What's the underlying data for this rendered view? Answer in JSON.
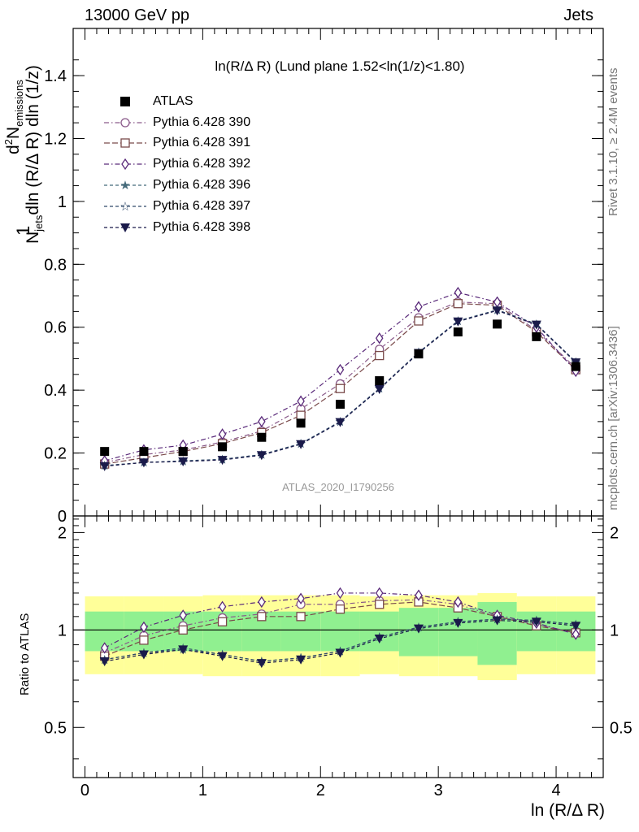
{
  "header": {
    "left": "13000 GeV pp",
    "right": "Jets"
  },
  "side_labels": {
    "rivet": "Rivet 3.1.10, ≥ 2.4M events",
    "mcplots": "mcplots.cern.ch [arXiv:1306.3436]"
  },
  "watermark": "ATLAS_2020_I1790256",
  "ratio_ylabel": "Ratio to ATLAS",
  "colors": {
    "s390": "#8a5a8a",
    "s391": "#7a4a4a",
    "s392": "#5a2a7a",
    "s396": "#456a7a",
    "s397": "#304a6a",
    "s398": "#1a1a4a",
    "band_inner": "#90f090",
    "band_outer": "#ffff99"
  },
  "chart_data": [
    {
      "type": "scatter",
      "title": "ln(R/Δ R) (Lund plane 1.52<ln(1/z)<1.80)",
      "ylabel_parts": [
        "1",
        "N",
        "jets",
        "dln (R/Δ R) dln (1/z)",
        "d",
        "2",
        "N",
        "emissions"
      ],
      "xlim": [
        -0.1,
        4.4
      ],
      "ylim": [
        0,
        1.55
      ],
      "yticks": [
        0,
        0.2,
        0.4,
        0.6,
        0.8,
        1,
        1.2,
        1.4
      ],
      "ytick_labels": [
        "0",
        "0.2",
        "0.4",
        "0.6",
        "0.8",
        "1",
        "1.2",
        "1.4"
      ],
      "x": [
        0.167,
        0.5,
        0.833,
        1.167,
        1.5,
        1.833,
        2.167,
        2.5,
        2.833,
        3.167,
        3.5,
        3.833,
        4.167
      ],
      "data": {
        "name": "ATLAS",
        "values": [
          0.205,
          0.205,
          0.205,
          0.22,
          0.25,
          0.295,
          0.355,
          0.43,
          0.515,
          0.585,
          0.61,
          0.57,
          0.475
        ]
      },
      "series": [
        {
          "name": "Pythia 6.428 390",
          "values": [
            0.17,
            0.195,
            0.21,
            0.235,
            0.27,
            0.34,
            0.42,
            0.53,
            0.63,
            0.68,
            0.675,
            0.59,
            0.47
          ]
        },
        {
          "name": "Pythia 6.428 391",
          "values": [
            0.165,
            0.185,
            0.205,
            0.23,
            0.265,
            0.32,
            0.405,
            0.51,
            0.62,
            0.675,
            0.67,
            0.585,
            0.465
          ]
        },
        {
          "name": "Pythia 6.428 392",
          "values": [
            0.175,
            0.21,
            0.225,
            0.26,
            0.3,
            0.365,
            0.465,
            0.565,
            0.665,
            0.71,
            0.68,
            0.6,
            0.46
          ]
        },
        {
          "name": "Pythia 6.428 396",
          "values": [
            0.16,
            0.17,
            0.175,
            0.18,
            0.195,
            0.23,
            0.3,
            0.405,
            0.52,
            0.62,
            0.655,
            0.61,
            0.49
          ]
        },
        {
          "name": "Pythia 6.428 397",
          "values": [
            0.16,
            0.17,
            0.175,
            0.18,
            0.195,
            0.23,
            0.3,
            0.405,
            0.52,
            0.62,
            0.655,
            0.61,
            0.49
          ]
        },
        {
          "name": "Pythia 6.428 398",
          "values": [
            0.158,
            0.17,
            0.173,
            0.178,
            0.193,
            0.228,
            0.298,
            0.403,
            0.518,
            0.618,
            0.653,
            0.608,
            0.488
          ]
        }
      ]
    },
    {
      "type": "scatter",
      "ylabel": "Ratio to ATLAS",
      "xlabel": "ln (R/Δ R)",
      "xlim": [
        -0.1,
        4.4
      ],
      "ylim": [
        0.35,
        2.25
      ],
      "xticks": [
        0,
        1,
        2,
        3,
        4
      ],
      "xtick_labels": [
        "0",
        "1",
        "2",
        "3",
        "4"
      ],
      "yticks": [
        0.5,
        1,
        2
      ],
      "ytick_labels": [
        "0.5",
        "1",
        "2"
      ],
      "x": [
        0.167,
        0.5,
        0.833,
        1.167,
        1.5,
        1.833,
        2.167,
        2.5,
        2.833,
        3.167,
        3.5,
        3.833,
        4.167
      ],
      "band_inner": [
        0.14,
        0.14,
        0.14,
        0.14,
        0.14,
        0.14,
        0.14,
        0.14,
        0.17,
        0.17,
        0.22,
        0.14,
        0.14
      ],
      "band_outer": [
        0.27,
        0.27,
        0.27,
        0.28,
        0.28,
        0.28,
        0.28,
        0.27,
        0.28,
        0.28,
        0.3,
        0.27,
        0.27
      ],
      "series": [
        {
          "name": "Pythia 6.428 390",
          "values": [
            0.85,
            0.96,
            1.03,
            1.09,
            1.12,
            1.2,
            1.2,
            1.23,
            1.24,
            1.2,
            1.1,
            1.04,
            0.98
          ]
        },
        {
          "name": "Pythia 6.428 391",
          "values": [
            0.83,
            0.93,
            1.0,
            1.06,
            1.1,
            1.1,
            1.16,
            1.2,
            1.22,
            1.17,
            1.1,
            1.03,
            0.98
          ]
        },
        {
          "name": "Pythia 6.428 392",
          "values": [
            0.88,
            1.02,
            1.11,
            1.18,
            1.22,
            1.25,
            1.3,
            1.3,
            1.28,
            1.22,
            1.11,
            1.05,
            0.97
          ]
        },
        {
          "name": "Pythia 6.428 396",
          "values": [
            0.81,
            0.85,
            0.87,
            0.84,
            0.8,
            0.82,
            0.86,
            0.95,
            1.02,
            1.06,
            1.08,
            1.07,
            1.04
          ]
        },
        {
          "name": "Pythia 6.428 397",
          "values": [
            0.81,
            0.85,
            0.88,
            0.84,
            0.8,
            0.82,
            0.86,
            0.95,
            1.02,
            1.06,
            1.08,
            1.07,
            1.04
          ]
        },
        {
          "name": "Pythia 6.428 398",
          "values": [
            0.8,
            0.84,
            0.87,
            0.83,
            0.79,
            0.81,
            0.85,
            0.94,
            1.01,
            1.05,
            1.07,
            1.06,
            1.03
          ]
        }
      ]
    }
  ]
}
